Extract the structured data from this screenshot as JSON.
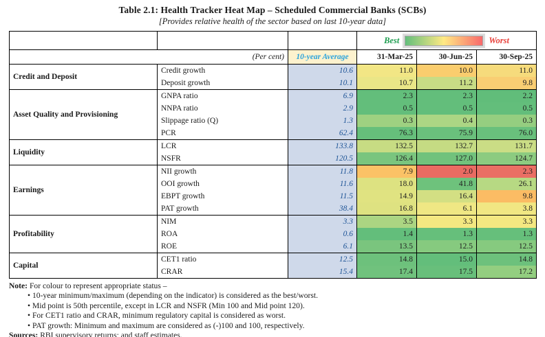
{
  "title": "Table 2.1: Health Tracker Heat Map – Scheduled Commercial Banks (SCBs)",
  "subtitle": "[Provides relative health of the sector based on last 10-year data]",
  "legend": {
    "best_label": "Best",
    "worst_label": "Worst",
    "best_color": "#1E9E50",
    "worst_color": "#E8403A",
    "gradient_colors": [
      "#63BE7B",
      "#FFE984",
      "#F8696B"
    ]
  },
  "header": {
    "unit_label": "(Per cent)",
    "avg_label": "10-year Average",
    "avg_header_bg": "#FDF2CE",
    "avg_header_text_color": "#2BA3DC",
    "date_columns": [
      "31-Mar-25",
      "30-Jun-25",
      "30-Sep-25"
    ]
  },
  "avg_column": {
    "bg": "#CFD9EA",
    "text_color": "#1F5597"
  },
  "groups": [
    {
      "category": "Credit and Deposit",
      "rows": [
        {
          "label": "Credit growth",
          "avg": "10.6",
          "values": [
            {
              "v": "11.0",
              "bg": "#F2E685"
            },
            {
              "v": "10.0",
              "bg": "#FACD6E"
            },
            {
              "v": "11.0",
              "bg": "#F6DB7C"
            }
          ]
        },
        {
          "label": "Deposit growth",
          "avg": "10.1",
          "values": [
            {
              "v": "10.7",
              "bg": "#EAE687"
            },
            {
              "v": "11.2",
              "bg": "#C8DC85"
            },
            {
              "v": "9.8",
              "bg": "#F9CE73"
            }
          ]
        }
      ]
    },
    {
      "category": "Asset Quality and Provisioning",
      "rows": [
        {
          "label": "GNPA ratio",
          "avg": "6.9",
          "values": [
            {
              "v": "2.3",
              "bg": "#63BE7B"
            },
            {
              "v": "2.3",
              "bg": "#63BE7B"
            },
            {
              "v": "2.2",
              "bg": "#61BD7A"
            }
          ]
        },
        {
          "label": "NNPA ratio",
          "avg": "2.9",
          "values": [
            {
              "v": "0.5",
              "bg": "#63BE7B"
            },
            {
              "v": "0.5",
              "bg": "#63BE7B"
            },
            {
              "v": "0.5",
              "bg": "#63BE7B"
            }
          ]
        },
        {
          "label": "Slippage ratio (Q)",
          "avg": "1.3",
          "values": [
            {
              "v": "0.3",
              "bg": "#9ED181"
            },
            {
              "v": "0.4",
              "bg": "#ACD684"
            },
            {
              "v": "0.3",
              "bg": "#95CE80"
            }
          ]
        },
        {
          "label": "PCR",
          "avg": "62.4",
          "values": [
            {
              "v": "76.3",
              "bg": "#66BF7B"
            },
            {
              "v": "75.9",
              "bg": "#6AC07C"
            },
            {
              "v": "76.0",
              "bg": "#69C07C"
            }
          ]
        }
      ]
    },
    {
      "category": "Liquidity",
      "rows": [
        {
          "label": "LCR",
          "avg": "133.8",
          "values": [
            {
              "v": "132.5",
              "bg": "#C7DC83"
            },
            {
              "v": "132.7",
              "bg": "#C5DB83"
            },
            {
              "v": "131.7",
              "bg": "#CADD85"
            }
          ]
        },
        {
          "label": "NSFR",
          "avg": "120.5",
          "values": [
            {
              "v": "126.4",
              "bg": "#7AC57E"
            },
            {
              "v": "127.0",
              "bg": "#71C27C"
            },
            {
              "v": "124.7",
              "bg": "#8CCB80"
            }
          ]
        }
      ]
    },
    {
      "category": "Earnings",
      "rows": [
        {
          "label": "NII growth",
          "avg": "11.8",
          "values": [
            {
              "v": "7.9",
              "bg": "#FBC266"
            },
            {
              "v": "2.0",
              "bg": "#EA6B62"
            },
            {
              "v": "2.3",
              "bg": "#EA6F64"
            }
          ]
        },
        {
          "label": "OOI growth",
          "avg": "11.6",
          "values": [
            {
              "v": "18.0",
              "bg": "#DDE281"
            },
            {
              "v": "41.8",
              "bg": "#6EC27C"
            },
            {
              "v": "26.1",
              "bg": "#B7D983"
            }
          ]
        },
        {
          "label": "EBPT growth",
          "avg": "11.5",
          "values": [
            {
              "v": "14.9",
              "bg": "#E0E381"
            },
            {
              "v": "16.4",
              "bg": "#D3DF83"
            },
            {
              "v": "9.8",
              "bg": "#FBBC64"
            }
          ]
        },
        {
          "label": "PAT growth",
          "avg": "38.4",
          "values": [
            {
              "v": "16.8",
              "bg": "#DEE281"
            },
            {
              "v": "6.1",
              "bg": "#EFE784"
            },
            {
              "v": "3.8",
              "bg": "#F1E783"
            }
          ]
        }
      ]
    },
    {
      "category": "Profitability",
      "rows": [
        {
          "label": "NIM",
          "avg": "3.3",
          "values": [
            {
              "v": "3.5",
              "bg": "#ABD582"
            },
            {
              "v": "3.3",
              "bg": "#F4E881"
            },
            {
              "v": "3.3",
              "bg": "#F4E881"
            }
          ]
        },
        {
          "label": "ROA",
          "avg": "0.6",
          "values": [
            {
              "v": "1.4",
              "bg": "#63BE7B"
            },
            {
              "v": "1.3",
              "bg": "#66BF7B"
            },
            {
              "v": "1.3",
              "bg": "#66BF7B"
            }
          ]
        },
        {
          "label": "ROE",
          "avg": "6.1",
          "values": [
            {
              "v": "13.5",
              "bg": "#7AC57E"
            },
            {
              "v": "12.5",
              "bg": "#86CA7F"
            },
            {
              "v": "12.5",
              "bg": "#86CA7F"
            }
          ]
        }
      ]
    },
    {
      "category": "Capital",
      "rows": [
        {
          "label": "CET1 ratio",
          "avg": "12.5",
          "values": [
            {
              "v": "14.8",
              "bg": "#6DC17C"
            },
            {
              "v": "15.0",
              "bg": "#63BE7B"
            },
            {
              "v": "14.8",
              "bg": "#6DC17C"
            }
          ]
        },
        {
          "label": "CRAR",
          "avg": "15.4",
          "values": [
            {
              "v": "17.4",
              "bg": "#70C27D"
            },
            {
              "v": "17.5",
              "bg": "#68BF7B"
            },
            {
              "v": "17.2",
              "bg": "#93CE80"
            }
          ]
        }
      ]
    }
  ],
  "notes": {
    "note_label": "Note:",
    "note_intro": "For colour to represent appropriate status –",
    "bullets": [
      "10-year minimum/maximum (depending on the indicator) is considered as the best/worst.",
      "Mid point is 50th percentile, except in LCR and NSFR (Min 100 and Mid point 120).",
      "For CET1 ratio and CRAR, minimum regulatory capital is considered as worst.",
      "PAT growth: Minimum and maximum are considered as (-)100 and 100, respectively."
    ],
    "sources_label": "Sources:",
    "sources_text": "RBI supervisory returns; and staff estimates."
  },
  "chart_data": {
    "type": "heatmap",
    "unit": "Per cent",
    "columns": [
      "10-year Average",
      "31-Mar-25",
      "30-Jun-25",
      "30-Sep-25"
    ],
    "rows": [
      {
        "group": "Credit and Deposit",
        "label": "Credit growth",
        "values": [
          10.6,
          11.0,
          10.0,
          11.0
        ]
      },
      {
        "group": "Credit and Deposit",
        "label": "Deposit growth",
        "values": [
          10.1,
          10.7,
          11.2,
          9.8
        ]
      },
      {
        "group": "Asset Quality and Provisioning",
        "label": "GNPA ratio",
        "values": [
          6.9,
          2.3,
          2.3,
          2.2
        ]
      },
      {
        "group": "Asset Quality and Provisioning",
        "label": "NNPA ratio",
        "values": [
          2.9,
          0.5,
          0.5,
          0.5
        ]
      },
      {
        "group": "Asset Quality and Provisioning",
        "label": "Slippage ratio (Q)",
        "values": [
          1.3,
          0.3,
          0.4,
          0.3
        ]
      },
      {
        "group": "Asset Quality and Provisioning",
        "label": "PCR",
        "values": [
          62.4,
          76.3,
          75.9,
          76.0
        ]
      },
      {
        "group": "Liquidity",
        "label": "LCR",
        "values": [
          133.8,
          132.5,
          132.7,
          131.7
        ]
      },
      {
        "group": "Liquidity",
        "label": "NSFR",
        "values": [
          120.5,
          126.4,
          127.0,
          124.7
        ]
      },
      {
        "group": "Earnings",
        "label": "NII growth",
        "values": [
          11.8,
          7.9,
          2.0,
          2.3
        ]
      },
      {
        "group": "Earnings",
        "label": "OOI growth",
        "values": [
          11.6,
          18.0,
          41.8,
          26.1
        ]
      },
      {
        "group": "Earnings",
        "label": "EBPT growth",
        "values": [
          11.5,
          14.9,
          16.4,
          9.8
        ]
      },
      {
        "group": "Earnings",
        "label": "PAT growth",
        "values": [
          38.4,
          16.8,
          6.1,
          3.8
        ]
      },
      {
        "group": "Profitability",
        "label": "NIM",
        "values": [
          3.3,
          3.5,
          3.3,
          3.3
        ]
      },
      {
        "group": "Profitability",
        "label": "ROA",
        "values": [
          0.6,
          1.4,
          1.3,
          1.3
        ]
      },
      {
        "group": "Profitability",
        "label": "ROE",
        "values": [
          6.1,
          13.5,
          12.5,
          12.5
        ]
      },
      {
        "group": "Capital",
        "label": "CET1 ratio",
        "values": [
          12.5,
          14.8,
          15.0,
          14.8
        ]
      },
      {
        "group": "Capital",
        "label": "CRAR",
        "values": [
          15.4,
          17.4,
          17.5,
          17.2
        ]
      }
    ],
    "color_scale": {
      "best": "#63BE7B",
      "mid": "#FFE984",
      "worst": "#F8696B"
    },
    "legend_position": "top"
  }
}
